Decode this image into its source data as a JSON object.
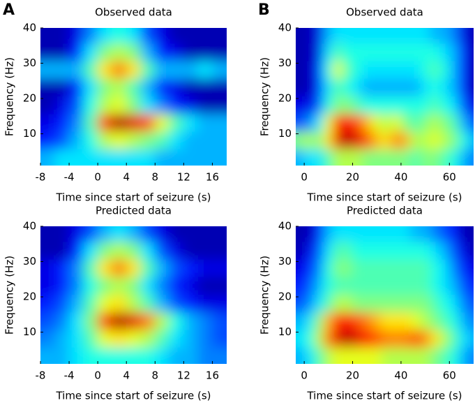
{
  "chart_data": [
    {
      "type": "heatmap",
      "panel_label": "A",
      "title": "Observed data",
      "xlabel": "Time since start of seizure (s)",
      "ylabel": "Frequency (Hz)",
      "colormap": "jet",
      "zlim": [
        0,
        1
      ],
      "xlim": [
        -8,
        18
      ],
      "ylim": [
        1,
        40
      ],
      "xticks": [
        -8,
        -4,
        0,
        4,
        8,
        12,
        16
      ],
      "yticks": [
        10,
        20,
        30,
        40
      ],
      "x": [
        -7,
        -5,
        -3,
        -1,
        1,
        3,
        5,
        7,
        9,
        11,
        13,
        15,
        17
      ],
      "y": [
        38,
        33,
        28,
        23,
        18,
        13,
        8,
        3
      ],
      "z": [
        [
          0.05,
          0.05,
          0.1,
          0.25,
          0.35,
          0.4,
          0.35,
          0.2,
          0.1,
          0.05,
          0.05,
          0.05,
          0.05
        ],
        [
          0.05,
          0.05,
          0.15,
          0.35,
          0.5,
          0.55,
          0.5,
          0.3,
          0.15,
          0.1,
          0.05,
          0.05,
          0.05
        ],
        [
          0.3,
          0.3,
          0.3,
          0.45,
          0.65,
          0.75,
          0.65,
          0.45,
          0.3,
          0.3,
          0.3,
          0.35,
          0.3
        ],
        [
          0.05,
          0.05,
          0.15,
          0.35,
          0.5,
          0.55,
          0.45,
          0.3,
          0.15,
          0.1,
          0.05,
          0.05,
          0.05
        ],
        [
          0.05,
          0.1,
          0.2,
          0.4,
          0.55,
          0.6,
          0.5,
          0.35,
          0.25,
          0.15,
          0.1,
          0.05,
          0.05
        ],
        [
          0.1,
          0.15,
          0.25,
          0.45,
          0.8,
          0.95,
          0.9,
          0.8,
          0.6,
          0.45,
          0.35,
          0.3,
          0.3
        ],
        [
          0.15,
          0.2,
          0.3,
          0.4,
          0.55,
          0.6,
          0.55,
          0.5,
          0.45,
          0.35,
          0.3,
          0.3,
          0.3
        ],
        [
          0.3,
          0.35,
          0.35,
          0.35,
          0.35,
          0.35,
          0.35,
          0.35,
          0.3,
          0.3,
          0.3,
          0.3,
          0.3
        ]
      ]
    },
    {
      "type": "heatmap",
      "title": "Predicted data",
      "xlabel": "Time since start of seizure (s)",
      "ylabel": "Frequency (Hz)",
      "colormap": "jet",
      "zlim": [
        0,
        1
      ],
      "xlim": [
        -8,
        18
      ],
      "ylim": [
        1,
        40
      ],
      "xticks": [
        -8,
        -4,
        0,
        4,
        8,
        12,
        16
      ],
      "yticks": [
        10,
        20,
        30,
        40
      ],
      "x": [
        -7,
        -5,
        -3,
        -1,
        1,
        3,
        5,
        7,
        9,
        11,
        13,
        15,
        17
      ],
      "y": [
        38,
        33,
        28,
        23,
        18,
        13,
        8,
        3
      ],
      "z": [
        [
          0.05,
          0.05,
          0.1,
          0.2,
          0.3,
          0.35,
          0.3,
          0.2,
          0.1,
          0.05,
          0.05,
          0.05,
          0.05
        ],
        [
          0.05,
          0.05,
          0.15,
          0.35,
          0.5,
          0.55,
          0.5,
          0.35,
          0.2,
          0.1,
          0.05,
          0.05,
          0.05
        ],
        [
          0.1,
          0.15,
          0.25,
          0.45,
          0.65,
          0.75,
          0.65,
          0.45,
          0.3,
          0.2,
          0.15,
          0.1,
          0.1
        ],
        [
          0.1,
          0.15,
          0.25,
          0.4,
          0.5,
          0.55,
          0.5,
          0.35,
          0.25,
          0.15,
          0.1,
          0.05,
          0.05
        ],
        [
          0.15,
          0.2,
          0.3,
          0.45,
          0.6,
          0.65,
          0.55,
          0.45,
          0.3,
          0.2,
          0.15,
          0.1,
          0.1
        ],
        [
          0.2,
          0.25,
          0.35,
          0.5,
          0.8,
          0.95,
          0.9,
          0.75,
          0.55,
          0.4,
          0.3,
          0.25,
          0.2
        ],
        [
          0.25,
          0.3,
          0.35,
          0.45,
          0.6,
          0.65,
          0.6,
          0.55,
          0.45,
          0.35,
          0.3,
          0.25,
          0.2
        ],
        [
          0.3,
          0.3,
          0.35,
          0.4,
          0.4,
          0.4,
          0.4,
          0.4,
          0.35,
          0.3,
          0.3,
          0.25,
          0.25
        ]
      ]
    },
    {
      "type": "heatmap",
      "panel_label": "B",
      "title": "Observed data",
      "xlabel": "Time since start of seizure (s)",
      "ylabel": "Frequency (Hz)",
      "colormap": "jet",
      "zlim": [
        0,
        1
      ],
      "xlim": [
        -3.5,
        70
      ],
      "ylim": [
        1,
        40
      ],
      "xticks": [
        0,
        20,
        40,
        60
      ],
      "yticks": [
        10,
        20,
        30,
        40
      ],
      "x": [
        -2,
        2,
        6,
        10,
        14,
        18,
        22,
        26,
        30,
        34,
        38,
        42,
        46,
        50,
        54,
        58,
        62,
        66,
        70
      ],
      "y": [
        38,
        33,
        28,
        23,
        18,
        13,
        8,
        3
      ],
      "z": [
        [
          0.05,
          0.05,
          0.1,
          0.3,
          0.35,
          0.35,
          0.35,
          0.35,
          0.35,
          0.35,
          0.35,
          0.35,
          0.35,
          0.35,
          0.3,
          0.3,
          0.25,
          0.1,
          0.05
        ],
        [
          0.05,
          0.05,
          0.1,
          0.35,
          0.45,
          0.4,
          0.4,
          0.4,
          0.4,
          0.4,
          0.4,
          0.4,
          0.4,
          0.4,
          0.4,
          0.35,
          0.3,
          0.15,
          0.05
        ],
        [
          0.05,
          0.05,
          0.15,
          0.4,
          0.6,
          0.45,
          0.4,
          0.35,
          0.35,
          0.35,
          0.35,
          0.35,
          0.35,
          0.4,
          0.45,
          0.4,
          0.3,
          0.15,
          0.05
        ],
        [
          0.05,
          0.05,
          0.15,
          0.35,
          0.45,
          0.4,
          0.35,
          0.3,
          0.3,
          0.3,
          0.3,
          0.3,
          0.3,
          0.35,
          0.4,
          0.35,
          0.3,
          0.15,
          0.05
        ],
        [
          0.1,
          0.1,
          0.2,
          0.4,
          0.5,
          0.5,
          0.45,
          0.4,
          0.4,
          0.4,
          0.4,
          0.4,
          0.4,
          0.4,
          0.45,
          0.4,
          0.35,
          0.2,
          0.1
        ],
        [
          0.2,
          0.25,
          0.35,
          0.6,
          0.85,
          0.85,
          0.8,
          0.7,
          0.6,
          0.55,
          0.6,
          0.5,
          0.45,
          0.5,
          0.55,
          0.5,
          0.45,
          0.3,
          0.2
        ],
        [
          0.5,
          0.55,
          0.5,
          0.65,
          0.9,
          0.95,
          0.9,
          0.8,
          0.7,
          0.65,
          0.75,
          0.7,
          0.55,
          0.55,
          0.6,
          0.55,
          0.5,
          0.4,
          0.3
        ],
        [
          0.3,
          0.35,
          0.35,
          0.45,
          0.55,
          0.55,
          0.55,
          0.5,
          0.5,
          0.5,
          0.5,
          0.5,
          0.45,
          0.5,
          0.5,
          0.45,
          0.4,
          0.3,
          0.25
        ]
      ]
    },
    {
      "type": "heatmap",
      "title": "Predicted data",
      "xlabel": "Time since start of seizure (s)",
      "ylabel": "Frequency (Hz)",
      "colormap": "jet",
      "zlim": [
        0,
        1
      ],
      "xlim": [
        -3.5,
        70
      ],
      "ylim": [
        1,
        40
      ],
      "xticks": [
        0,
        20,
        40,
        60
      ],
      "yticks": [
        10,
        20,
        30,
        40
      ],
      "x": [
        -2,
        2,
        6,
        10,
        14,
        18,
        22,
        26,
        30,
        34,
        38,
        42,
        46,
        50,
        54,
        58,
        62,
        66,
        70
      ],
      "y": [
        38,
        33,
        28,
        23,
        18,
        13,
        8,
        3
      ],
      "z": [
        [
          0.05,
          0.05,
          0.15,
          0.3,
          0.35,
          0.35,
          0.35,
          0.35,
          0.35,
          0.35,
          0.35,
          0.35,
          0.3,
          0.3,
          0.25,
          0.2,
          0.15,
          0.05,
          0.05
        ],
        [
          0.05,
          0.1,
          0.2,
          0.35,
          0.45,
          0.45,
          0.4,
          0.4,
          0.4,
          0.4,
          0.4,
          0.4,
          0.4,
          0.4,
          0.35,
          0.3,
          0.2,
          0.1,
          0.05
        ],
        [
          0.1,
          0.15,
          0.25,
          0.4,
          0.5,
          0.5,
          0.45,
          0.45,
          0.45,
          0.45,
          0.45,
          0.45,
          0.45,
          0.45,
          0.4,
          0.35,
          0.25,
          0.15,
          0.1
        ],
        [
          0.15,
          0.2,
          0.3,
          0.4,
          0.45,
          0.45,
          0.45,
          0.45,
          0.45,
          0.45,
          0.45,
          0.45,
          0.45,
          0.45,
          0.4,
          0.35,
          0.3,
          0.2,
          0.15
        ],
        [
          0.2,
          0.25,
          0.35,
          0.45,
          0.55,
          0.55,
          0.5,
          0.5,
          0.5,
          0.5,
          0.5,
          0.5,
          0.5,
          0.5,
          0.45,
          0.4,
          0.35,
          0.25,
          0.2
        ],
        [
          0.3,
          0.35,
          0.5,
          0.7,
          0.85,
          0.85,
          0.8,
          0.75,
          0.7,
          0.65,
          0.65,
          0.65,
          0.6,
          0.55,
          0.5,
          0.45,
          0.4,
          0.3,
          0.25
        ],
        [
          0.35,
          0.4,
          0.55,
          0.75,
          0.9,
          0.95,
          0.9,
          0.85,
          0.8,
          0.75,
          0.75,
          0.75,
          0.8,
          0.75,
          0.65,
          0.55,
          0.45,
          0.35,
          0.3
        ],
        [
          0.3,
          0.35,
          0.45,
          0.55,
          0.6,
          0.6,
          0.6,
          0.6,
          0.6,
          0.55,
          0.55,
          0.55,
          0.55,
          0.55,
          0.5,
          0.45,
          0.4,
          0.3,
          0.25
        ]
      ]
    }
  ]
}
